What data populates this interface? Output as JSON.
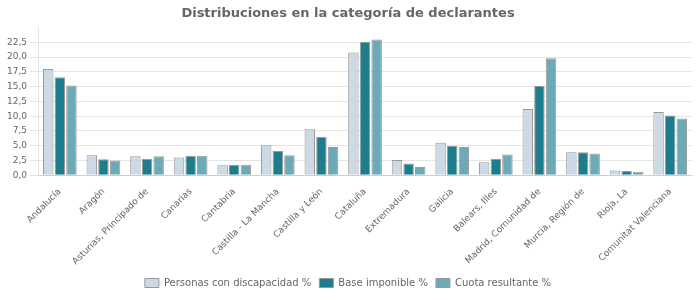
{
  "chart_data": {
    "type": "bar",
    "title": "Distribuciones en la categoría de declarantes",
    "categories": [
      "Andalucía",
      "Aragón",
      "Asturias, Principado de",
      "Canarias",
      "Cantabria",
      "Castilla - La Mancha",
      "Castilla y León",
      "Cataluña",
      "Extremadura",
      "Galicia",
      "Balears, Illes",
      "Madrid, Comunidad de",
      "Murcia, Región de",
      "Rioja, La",
      "Comunitat Valenciana"
    ],
    "series": [
      {
        "name": "Personas con discapacidad %",
        "color": "#cdd9e5",
        "values": [
          18.0,
          3.4,
          3.2,
          3.0,
          1.7,
          5.1,
          7.8,
          20.8,
          2.6,
          5.5,
          2.2,
          11.2,
          3.9,
          0.8,
          10.7
        ]
      },
      {
        "name": "Base imponible %",
        "color": "#1e7d8c",
        "values": [
          16.6,
          2.7,
          2.8,
          3.3,
          1.8,
          4.1,
          6.5,
          22.6,
          2.0,
          5.0,
          2.8,
          15.1,
          3.9,
          0.7,
          10.1
        ]
      },
      {
        "name": "Cuota resultante %",
        "color": "#6daab8",
        "values": [
          15.2,
          2.5,
          3.2,
          3.3,
          1.8,
          3.4,
          4.8,
          23.0,
          1.4,
          4.8,
          3.5,
          19.8,
          3.7,
          0.6,
          9.6
        ]
      }
    ],
    "ylim": [
      0,
      25
    ],
    "yticks": [
      {
        "value": 0.0,
        "label": "0,0"
      },
      {
        "value": 2.5,
        "label": "2,5"
      },
      {
        "value": 5.0,
        "label": "5,0"
      },
      {
        "value": 7.5,
        "label": "7,5"
      },
      {
        "value": 10.0,
        "label": "10,0"
      },
      {
        "value": 12.5,
        "label": "12,5"
      },
      {
        "value": 15.0,
        "label": "15,0"
      },
      {
        "value": 17.5,
        "label": "17,5"
      },
      {
        "value": 20.0,
        "label": "20,0"
      },
      {
        "value": 22.5,
        "label": "22,5"
      }
    ],
    "grid": true,
    "legend": "bottom"
  }
}
